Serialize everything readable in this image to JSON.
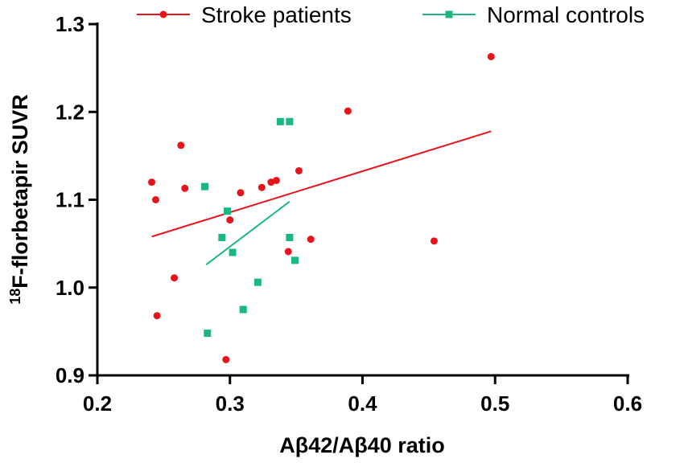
{
  "chart_data": {
    "type": "scatter",
    "title": "",
    "xlabel": "Aβ42/Aβ40 ratio",
    "ylabel_superscript": "18",
    "ylabel_main": "F-florbetapir SUVR",
    "xlim": [
      0.2,
      0.6
    ],
    "ylim": [
      0.9,
      1.3
    ],
    "xticks": [
      0.2,
      0.3,
      0.4,
      0.5,
      0.6
    ],
    "yticks": [
      0.9,
      1.0,
      1.1,
      1.2,
      1.3
    ],
    "xtick_labels": [
      "0.2",
      "0.3",
      "0.4",
      "0.5",
      "0.6"
    ],
    "ytick_labels": [
      "0.9",
      "1.0",
      "1.1",
      "1.2",
      "1.3"
    ],
    "grid": false,
    "legend_position": "top",
    "series": [
      {
        "name": "Stroke patients",
        "color": "#e8141c",
        "marker": "circle",
        "points": [
          [
            0.241,
            1.12
          ],
          [
            0.244,
            1.1
          ],
          [
            0.245,
            0.968
          ],
          [
            0.258,
            1.011
          ],
          [
            0.263,
            1.162
          ],
          [
            0.266,
            1.113
          ],
          [
            0.297,
            0.918
          ],
          [
            0.3,
            1.077
          ],
          [
            0.308,
            1.108
          ],
          [
            0.324,
            1.114
          ],
          [
            0.331,
            1.12
          ],
          [
            0.335,
            1.122
          ],
          [
            0.344,
            1.041
          ],
          [
            0.352,
            1.133
          ],
          [
            0.361,
            1.055
          ],
          [
            0.389,
            1.201
          ],
          [
            0.454,
            1.053
          ],
          [
            0.497,
            1.263
          ]
        ],
        "trendline": [
          [
            0.241,
            1.058
          ],
          [
            0.497,
            1.178
          ]
        ]
      },
      {
        "name": "Normal controls",
        "color": "#1ab780",
        "marker": "square",
        "points": [
          [
            0.281,
            1.115
          ],
          [
            0.283,
            0.948
          ],
          [
            0.294,
            1.057
          ],
          [
            0.298,
            1.087
          ],
          [
            0.302,
            1.04
          ],
          [
            0.31,
            0.975
          ],
          [
            0.321,
            1.006
          ],
          [
            0.338,
            1.189
          ],
          [
            0.345,
            1.189
          ],
          [
            0.345,
            1.057
          ],
          [
            0.349,
            1.031
          ]
        ],
        "trendline": [
          [
            0.282,
            1.026
          ],
          [
            0.345,
            1.098
          ]
        ]
      }
    ]
  }
}
